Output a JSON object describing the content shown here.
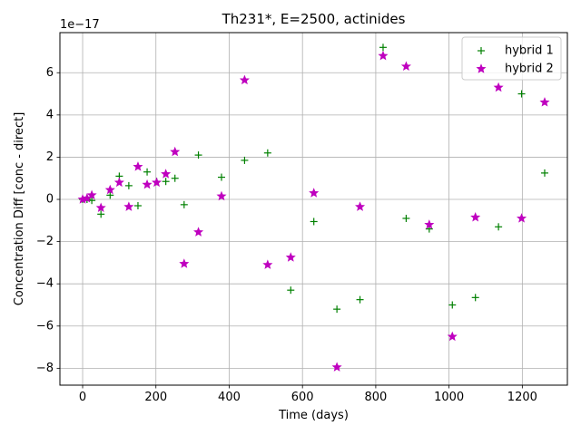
{
  "chart_data": {
    "type": "scatter",
    "title": "Th231*, E=2500, actinides",
    "xlabel": "Time (days)",
    "ylabel": "Concentration Diff [conc - direct]",
    "y_offset_label": "1e−17",
    "xlim": [
      -62,
      1323
    ],
    "ylim": [
      -8.8,
      7.9
    ],
    "x_ticks": [
      0,
      200,
      400,
      600,
      800,
      1000,
      1200
    ],
    "y_ticks": [
      -8,
      -6,
      -4,
      -2,
      0,
      2,
      4,
      6
    ],
    "y_tick_labels": [
      "−8",
      "−6",
      "−4",
      "−2",
      "0",
      "2",
      "4",
      "6"
    ],
    "grid": true,
    "legend_position": "upper-right",
    "series": [
      {
        "name": "hybrid 1",
        "marker": "plus",
        "color": "#008000",
        "points": [
          [
            0,
            0
          ],
          [
            12,
            0
          ],
          [
            25,
            -0.05
          ],
          [
            50,
            -0.7
          ],
          [
            75,
            0.2
          ],
          [
            100,
            1.1
          ],
          [
            126,
            0.65
          ],
          [
            151,
            -0.3
          ],
          [
            176,
            1.3
          ],
          [
            202,
            0.85
          ],
          [
            227,
            0.85
          ],
          [
            252,
            1.0
          ],
          [
            277,
            -0.25
          ],
          [
            316,
            2.1
          ],
          [
            379,
            1.05
          ],
          [
            442,
            1.85
          ],
          [
            505,
            2.2
          ],
          [
            568,
            -4.3
          ],
          [
            631,
            -1.05
          ],
          [
            694,
            -5.2
          ],
          [
            757,
            -4.75
          ],
          [
            820,
            7.2
          ],
          [
            883,
            -0.9
          ],
          [
            946,
            -1.4
          ],
          [
            1009,
            -5.0
          ],
          [
            1072,
            -4.65
          ],
          [
            1135,
            -1.3
          ],
          [
            1198,
            5.0
          ],
          [
            1261,
            1.25
          ]
        ]
      },
      {
        "name": "hybrid 2",
        "marker": "star",
        "color": "#bf00bf",
        "points": [
          [
            0,
            0
          ],
          [
            12,
            0.05
          ],
          [
            25,
            0.2
          ],
          [
            50,
            -0.4
          ],
          [
            75,
            0.45
          ],
          [
            100,
            0.8
          ],
          [
            126,
            -0.35
          ],
          [
            151,
            1.55
          ],
          [
            176,
            0.7
          ],
          [
            202,
            0.8
          ],
          [
            227,
            1.2
          ],
          [
            252,
            2.25
          ],
          [
            277,
            -3.05
          ],
          [
            316,
            -1.55
          ],
          [
            379,
            0.15
          ],
          [
            442,
            5.65
          ],
          [
            505,
            -3.1
          ],
          [
            568,
            -2.75
          ],
          [
            631,
            0.3
          ],
          [
            694,
            -7.95
          ],
          [
            757,
            -0.35
          ],
          [
            820,
            6.8
          ],
          [
            883,
            6.3
          ],
          [
            946,
            -1.2
          ],
          [
            1009,
            -6.5
          ],
          [
            1072,
            -0.85
          ],
          [
            1135,
            5.3
          ],
          [
            1198,
            -0.9
          ],
          [
            1261,
            4.6
          ]
        ]
      }
    ]
  }
}
